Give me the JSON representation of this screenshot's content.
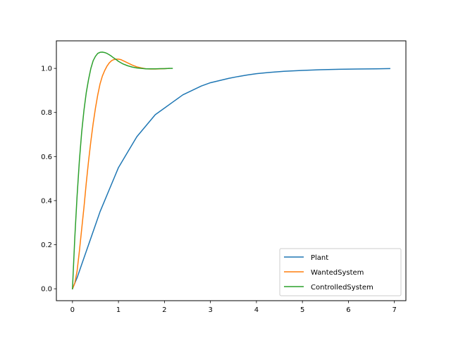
{
  "chart_data": {
    "type": "line",
    "title": "",
    "xlabel": "",
    "ylabel": "",
    "xlim": [
      -0.35,
      7.25
    ],
    "ylim": [
      -0.054,
      1.125
    ],
    "xticks": [
      0,
      1,
      2,
      3,
      4,
      5,
      6,
      7
    ],
    "yticks": [
      0.0,
      0.2,
      0.4,
      0.6,
      0.8,
      1.0
    ],
    "xtick_labels": [
      "0",
      "1",
      "2",
      "3",
      "4",
      "5",
      "6",
      "7"
    ],
    "ytick_labels": [
      "0.0",
      "0.2",
      "0.4",
      "0.6",
      "0.8",
      "1.0"
    ],
    "grid": false,
    "legend_position": "lower-right",
    "series": [
      {
        "name": "Plant",
        "color": "#1f77b4",
        "x": [
          0,
          0.1,
          0.2,
          0.3,
          0.4,
          0.5,
          0.6,
          0.7,
          0.8,
          0.9,
          1.0,
          1.2,
          1.4,
          1.6,
          1.8,
          2.0,
          2.2,
          2.4,
          2.6,
          2.8,
          3.0,
          3.2,
          3.4,
          3.6,
          3.8,
          4.0,
          4.3,
          4.6,
          5.0,
          5.4,
          5.8,
          6.2,
          6.6,
          6.9
        ],
        "y": [
          0,
          0.05,
          0.11,
          0.17,
          0.23,
          0.29,
          0.35,
          0.4,
          0.45,
          0.5,
          0.55,
          0.62,
          0.69,
          0.74,
          0.79,
          0.82,
          0.85,
          0.88,
          0.9,
          0.92,
          0.935,
          0.945,
          0.955,
          0.963,
          0.97,
          0.976,
          0.982,
          0.987,
          0.991,
          0.994,
          0.996,
          0.997,
          0.998,
          0.999
        ]
      },
      {
        "name": "WantedSystem",
        "color": "#ff7f0e",
        "x": [
          0,
          0.05,
          0.1,
          0.15,
          0.2,
          0.25,
          0.3,
          0.35,
          0.4,
          0.45,
          0.5,
          0.55,
          0.6,
          0.65,
          0.7,
          0.75,
          0.8,
          0.85,
          0.9,
          0.95,
          1.0,
          1.05,
          1.1,
          1.15,
          1.2,
          1.3,
          1.4,
          1.5,
          1.6,
          1.7,
          1.8,
          1.9,
          2.0,
          2.1
        ],
        "y": [
          0,
          0.025,
          0.08,
          0.17,
          0.27,
          0.37,
          0.48,
          0.58,
          0.67,
          0.75,
          0.82,
          0.88,
          0.93,
          0.965,
          0.99,
          1.01,
          1.025,
          1.035,
          1.04,
          1.042,
          1.042,
          1.04,
          1.035,
          1.03,
          1.025,
          1.015,
          1.007,
          1.002,
          0.998,
          0.997,
          0.997,
          0.998,
          0.999,
          1.0
        ]
      },
      {
        "name": "ControlledSystem",
        "color": "#2ca02c",
        "x": [
          0,
          0.05,
          0.1,
          0.15,
          0.2,
          0.25,
          0.3,
          0.35,
          0.4,
          0.45,
          0.5,
          0.55,
          0.6,
          0.65,
          0.7,
          0.75,
          0.8,
          0.85,
          0.9,
          0.95,
          1.0,
          1.1,
          1.2,
          1.3,
          1.4,
          1.5,
          1.6,
          1.7,
          1.8,
          1.9,
          2.0,
          2.1,
          2.17
        ],
        "y": [
          0,
          0.23,
          0.42,
          0.58,
          0.71,
          0.81,
          0.89,
          0.95,
          1.0,
          1.035,
          1.055,
          1.068,
          1.073,
          1.074,
          1.072,
          1.068,
          1.062,
          1.055,
          1.047,
          1.04,
          1.032,
          1.02,
          1.012,
          1.006,
          1.002,
          1.0,
          0.998,
          0.998,
          0.998,
          0.999,
          0.999,
          1.0,
          1.0
        ]
      }
    ]
  }
}
